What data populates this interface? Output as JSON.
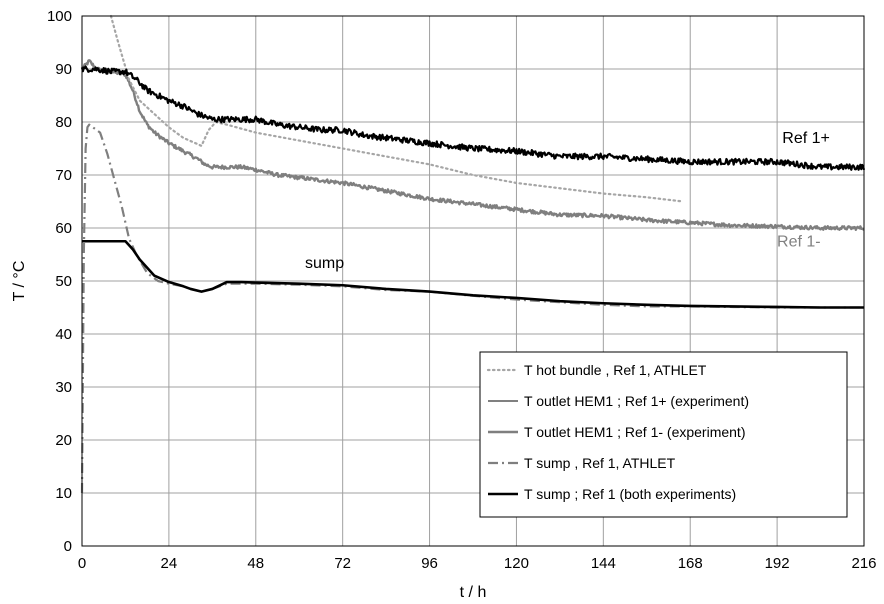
{
  "chart_data": {
    "type": "line",
    "title": "",
    "xlabel": "t  /  h",
    "ylabel": "T  /  °C",
    "xlim": [
      0,
      216
    ],
    "ylim": [
      0,
      100
    ],
    "xticks": [
      0,
      24,
      48,
      72,
      96,
      120,
      144,
      168,
      192,
      216
    ],
    "yticks": [
      0,
      10,
      20,
      30,
      40,
      50,
      60,
      70,
      80,
      90,
      100
    ],
    "grid": true,
    "legend_position": "bottom-right",
    "annotations": [
      {
        "text": "Ref 1+",
        "x": 200,
        "y": 76,
        "color": "#000000"
      },
      {
        "text": "Ref 1-",
        "x": 198,
        "y": 56.5,
        "color": "#808080"
      },
      {
        "text": "sump",
        "x": 67,
        "y": 52.5,
        "color": "#000000"
      }
    ],
    "series": [
      {
        "name": "T hot bundle , Ref 1, ATHLET",
        "color": "#a6a6a6",
        "style": "dotted",
        "x": [
          8,
          10,
          13,
          16,
          20,
          24,
          28,
          33,
          35,
          37,
          40,
          48,
          60,
          72,
          84,
          96,
          108,
          120,
          132,
          144,
          156,
          166
        ],
        "y": [
          100,
          95,
          88,
          84,
          81.5,
          79,
          77,
          75.5,
          78.5,
          80,
          79.5,
          78,
          76.5,
          75,
          73.5,
          72,
          70,
          68.5,
          67.5,
          66.5,
          65.8,
          65
        ]
      },
      {
        "name": "T outlet HEM1 ; Ref 1+ (experiment)",
        "color": "#000000",
        "style": "noisy-thick",
        "x": [
          0,
          4,
          8,
          12,
          15,
          18,
          21,
          24,
          28,
          32,
          36,
          40,
          44,
          48,
          54,
          60,
          66,
          72,
          78,
          84,
          96,
          108,
          120,
          132,
          144,
          156,
          168,
          180,
          192,
          198,
          204,
          210,
          216
        ],
        "y": [
          90,
          90,
          89.5,
          89.5,
          88,
          86,
          85,
          84,
          83,
          81.5,
          80.5,
          80.5,
          80.5,
          80.5,
          79.5,
          79,
          78.5,
          78.5,
          77.5,
          77,
          76,
          75,
          74.5,
          73.5,
          73.5,
          73,
          72.5,
          72.5,
          72.5,
          72,
          71.5,
          71.5,
          71.5
        ]
      },
      {
        "name": "T outlet HEM1 ; Ref 1- (experiment)",
        "color": "#7f7f7f",
        "style": "noisy",
        "x": [
          0,
          2,
          4,
          8,
          12,
          14,
          16,
          18,
          20,
          24,
          28,
          32,
          34,
          36,
          40,
          44,
          48,
          54,
          60,
          66,
          72,
          84,
          96,
          108,
          120,
          132,
          144,
          156,
          168,
          180,
          192,
          204,
          216
        ],
        "y": [
          90,
          91.5,
          90,
          89.5,
          89,
          86,
          82,
          79.5,
          78,
          76,
          74.5,
          73,
          72,
          71.5,
          71.5,
          71.5,
          71,
          70,
          69.5,
          69,
          68.5,
          67,
          65.5,
          64.5,
          63.5,
          62.5,
          62.3,
          61.5,
          61,
          60.5,
          60.3,
          60,
          60
        ]
      },
      {
        "name": "T sump , Ref 1, ATHLET",
        "color": "#7f7f7f",
        "style": "dashdot",
        "x": [
          0,
          0.5,
          1,
          1.5,
          2,
          3,
          5,
          7,
          9,
          11,
          13,
          15,
          18,
          21,
          24,
          28,
          30,
          33,
          36,
          40,
          44,
          48,
          60,
          72,
          84,
          96,
          108,
          120,
          132,
          144,
          156,
          168,
          180,
          192,
          204,
          216
        ],
        "y": [
          10,
          55,
          75,
          79,
          79.5,
          79,
          78,
          74,
          69,
          64,
          58,
          55,
          51.5,
          50,
          49.5,
          49,
          48.5,
          48,
          48.5,
          49.5,
          49.5,
          49.5,
          49.3,
          49,
          48.3,
          48,
          47.2,
          46.5,
          46,
          45.5,
          45.2,
          45.2,
          45.1,
          45,
          45,
          45
        ]
      },
      {
        "name": "T sump ; Ref 1 (both experiments)",
        "color": "#000000",
        "style": "solid-thick",
        "x": [
          0,
          12,
          14,
          16,
          18,
          20,
          24,
          28,
          30,
          33,
          36,
          40,
          44,
          48,
          60,
          72,
          84,
          96,
          108,
          120,
          132,
          144,
          156,
          168,
          180,
          192,
          204,
          216
        ],
        "y": [
          57.5,
          57.5,
          56,
          54,
          52.5,
          51,
          49.8,
          49,
          48.5,
          48,
          48.5,
          49.8,
          49.8,
          49.7,
          49.5,
          49.2,
          48.5,
          48,
          47.3,
          46.8,
          46.2,
          45.8,
          45.5,
          45.3,
          45.2,
          45.1,
          45,
          45
        ]
      }
    ]
  }
}
